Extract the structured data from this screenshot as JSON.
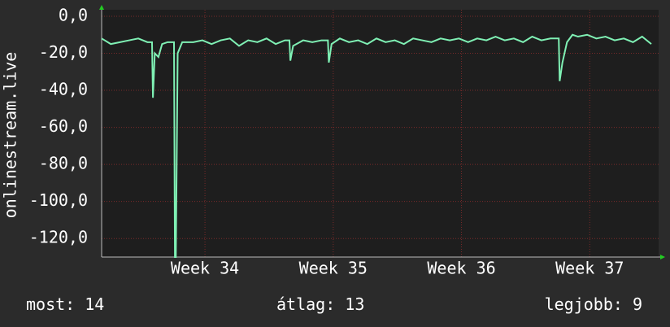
{
  "chart_data": {
    "type": "line",
    "y_label": "onlinestream.live",
    "x": [
      0,
      0.5,
      1,
      1.5,
      2,
      2.5,
      2.75,
      2.8,
      2.9,
      3.1,
      3.3,
      3.6,
      3.95,
      4.0,
      4.05,
      4.15,
      4.4,
      5,
      5.5,
      6,
      6.5,
      7,
      7.5,
      8,
      8.5,
      9,
      9.5,
      10,
      10.25,
      10.3,
      10.45,
      11,
      11.5,
      12,
      12.35,
      12.4,
      12.55,
      13,
      13.5,
      14,
      14.5,
      15,
      15.5,
      16,
      16.5,
      17,
      17.5,
      18,
      18.5,
      19,
      19.5,
      20,
      20.5,
      21,
      21.5,
      22,
      22.5,
      23,
      23.5,
      24,
      24.5,
      24.95,
      25.0,
      25.15,
      25.4,
      25.7,
      26,
      26.5,
      27,
      27.5,
      28,
      28.5,
      29,
      29.5,
      30
    ],
    "series": [
      {
        "name": "onlinestream.live",
        "color": "#7ff0b4",
        "values": [
          -12,
          -15,
          -14,
          -13,
          -12,
          -14,
          -14,
          -44,
          -20,
          -22,
          -15,
          -14,
          -14,
          -130,
          -130,
          -20,
          -14,
          -14,
          -13,
          -15,
          -13,
          -12,
          -16,
          -13,
          -14,
          -12,
          -15,
          -13,
          -13,
          -24,
          -16,
          -13,
          -14,
          -13,
          -13,
          -25,
          -15,
          -12,
          -14,
          -13,
          -15,
          -12,
          -14,
          -13,
          -15,
          -12,
          -13,
          -14,
          -12,
          -13,
          -12,
          -14,
          -12,
          -13,
          -11,
          -13,
          -12,
          -14,
          -11,
          -13,
          -12,
          -12,
          -35,
          -25,
          -14,
          -10,
          -11,
          -10,
          -12,
          -11,
          -13,
          -12,
          -14,
          -11,
          -15
        ]
      }
    ],
    "xlim": [
      0,
      30.4
    ],
    "xticks": [
      {
        "value": 5.64,
        "label": "Week 34"
      },
      {
        "value": 12.64,
        "label": "Week 35"
      },
      {
        "value": 19.64,
        "label": "Week 36"
      },
      {
        "value": 26.64,
        "label": "Week 37"
      }
    ],
    "ylim": [
      -130,
      3.5
    ],
    "yticks": [
      {
        "value": 0,
        "label": "0,0"
      },
      {
        "value": -20,
        "label": "-20,0"
      },
      {
        "value": -40,
        "label": "-40,0"
      },
      {
        "value": -60,
        "label": "-60,0"
      },
      {
        "value": -80,
        "label": "-80,0"
      },
      {
        "value": -100,
        "label": "-100,0"
      },
      {
        "value": -120,
        "label": "-120,0"
      }
    ],
    "grid": true,
    "footer": [
      {
        "label": "most:",
        "value": 14
      },
      {
        "label": "átlag:",
        "value": 13
      },
      {
        "label": "legjobb:",
        "value": 9
      }
    ]
  }
}
